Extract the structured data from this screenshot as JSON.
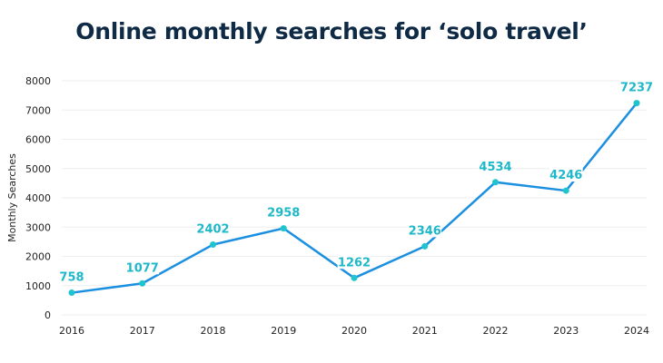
{
  "chart_data": {
    "type": "line",
    "title": "Online monthly searches for ‘solo travel’",
    "xlabel": "",
    "ylabel": "Monthly Searches",
    "x": [
      "2016",
      "2017",
      "2018",
      "2019",
      "2020",
      "2021",
      "2022",
      "2023",
      "2024"
    ],
    "series": [
      {
        "values": [
          758,
          1077,
          2402,
          2958,
          1262,
          2346,
          4534,
          4246,
          7237
        ]
      }
    ],
    "ylim": [
      0,
      8000
    ],
    "yticks": [
      0,
      1000,
      2000,
      3000,
      4000,
      5000,
      6000,
      7000,
      8000
    ],
    "grid": true,
    "data_labels": true,
    "colors": {
      "line": "#1b8fe0",
      "marker": "#1fc4cf",
      "label": "#1fb8c9",
      "grid": "#eeeeee",
      "title": "#0f2a44"
    }
  }
}
